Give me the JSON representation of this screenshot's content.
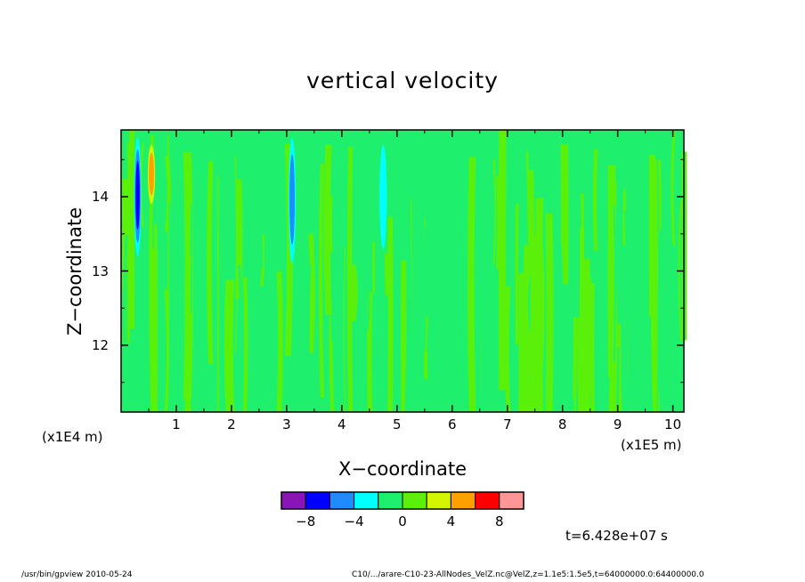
{
  "chart_data": {
    "type": "heatmap",
    "title": "vertical velocity",
    "xlabel": "X−coordinate",
    "ylabel": "Z−coordinate",
    "x_scale_label": "(x1E5 m)",
    "y_scale_label": "(x1E4 m)",
    "xlim": [
      0.0,
      10.2
    ],
    "ylim": [
      11.1,
      14.9
    ],
    "x_ticks": [
      "1",
      "2",
      "3",
      "4",
      "5",
      "6",
      "7",
      "8",
      "9",
      "10"
    ],
    "y_ticks": [
      "12",
      "13",
      "14"
    ],
    "colorbar": {
      "colors": [
        "#8a14b8",
        "#0000ff",
        "#1e8cff",
        "#00ffff",
        "#1ef06e",
        "#5af00a",
        "#d2f500",
        "#ffa000",
        "#ff0000",
        "#ff9696"
      ],
      "boundaries": [
        -10,
        -8,
        -6,
        -4,
        -2,
        0,
        2,
        4,
        6,
        8,
        10
      ],
      "tick_labels": [
        "−8",
        "−4",
        "0",
        "4",
        "8"
      ],
      "tick_values": [
        -8,
        -4,
        0,
        4,
        8
      ]
    },
    "background_level_colors": [
      "#1ef06e",
      "#5af00a"
    ],
    "features": [
      {
        "x": 0.3,
        "z_range": [
          13.2,
          14.8
        ],
        "min_value": -7,
        "note": "narrow negative streak"
      },
      {
        "x": 0.55,
        "z_range": [
          13.9,
          14.7
        ],
        "min_value": 5,
        "note": "narrow positive streak"
      },
      {
        "x": 3.1,
        "z_range": [
          13.1,
          14.8
        ],
        "min_value": -6,
        "note": "narrow negative streak"
      },
      {
        "x": 4.75,
        "z_range": [
          13.3,
          14.7
        ],
        "min_value": -4,
        "note": "narrow negative streak"
      }
    ]
  },
  "time_label": "t=6.428e+07 s",
  "footer": {
    "left": "/usr/bin/gpview   2010-05-24",
    "right": "C10/.../arare-C10-23-AllNodes_VelZ.nc@VelZ,z=1.1e5:1.5e5,t=64000000.0:64400000.0"
  }
}
